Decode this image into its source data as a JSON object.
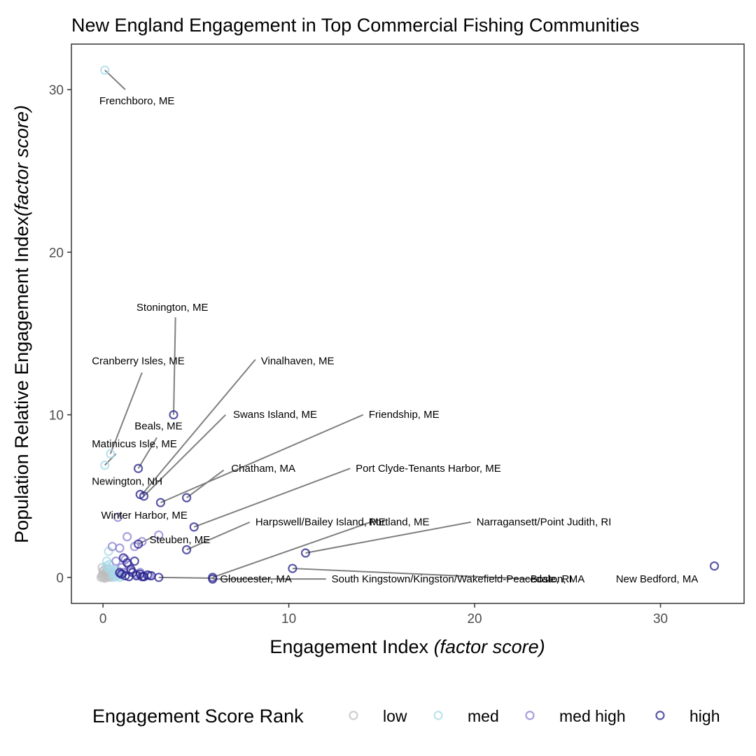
{
  "chart_data": {
    "type": "scatter",
    "title": "New England Engagement in Top Commercial Fishing Communities",
    "xlabel": {
      "main": "Engagement Index ",
      "italic": "(factor score)"
    },
    "ylabel": {
      "main": "Population Relative Engagement Index",
      "italic": "(factor score)"
    },
    "xlim": [
      -1.7,
      34.5
    ],
    "ylim": [
      -1.6,
      32.8
    ],
    "x_ticks": [
      0,
      10,
      20,
      30
    ],
    "y_ticks": [
      0,
      10,
      20,
      30
    ],
    "grid": false,
    "legend": {
      "title": "Engagement Score Rank",
      "position": "bottom"
    },
    "series": [
      {
        "name": "low",
        "color": "#bebebe",
        "points": [
          [
            -0.1,
            0
          ],
          [
            0,
            0.05
          ],
          [
            0.1,
            0
          ],
          [
            0.2,
            0.1
          ],
          [
            0,
            0.2
          ],
          [
            -0.05,
            0.1
          ],
          [
            0.15,
            0.3
          ],
          [
            0.05,
            0.45
          ],
          [
            -0.05,
            0.6
          ],
          [
            0.25,
            0.15
          ],
          [
            0.1,
            -0.05
          ],
          [
            0.3,
            0.05
          ],
          [
            0.2,
            0.5
          ],
          [
            0.4,
            0.2
          ],
          [
            0.35,
            0
          ],
          [
            0.5,
            0.1
          ],
          [
            0,
            0.35
          ],
          [
            0.15,
            0.15
          ]
        ]
      },
      {
        "name": "med",
        "color": "#a6d8ea",
        "points": [
          [
            0.1,
            31.2
          ],
          [
            0.4,
            7.6
          ],
          [
            0.1,
            6.9
          ],
          [
            0.3,
            1.6
          ],
          [
            0.2,
            1.0
          ],
          [
            0.35,
            0.8
          ],
          [
            0.45,
            0.5
          ],
          [
            0.5,
            0.3
          ],
          [
            0.6,
            0.2
          ],
          [
            0.7,
            0.05
          ],
          [
            0.8,
            0.15
          ],
          [
            0.55,
            0
          ],
          [
            0.3,
            0.55
          ],
          [
            0.65,
            0.35
          ],
          [
            0.9,
            0
          ],
          [
            1.0,
            0.1
          ],
          [
            0.2,
            0.7
          ],
          [
            0.75,
            0.45
          ]
        ]
      },
      {
        "name": "med high",
        "color": "#8a7fd0",
        "points": [
          [
            0.8,
            3.7
          ],
          [
            0.9,
            1.8
          ],
          [
            0.5,
            1.9
          ],
          [
            1.3,
            2.5
          ],
          [
            1.7,
            1.9
          ],
          [
            2.1,
            2.2
          ],
          [
            3.0,
            2.6
          ],
          [
            0.7,
            1.0
          ],
          [
            1.0,
            0.6
          ],
          [
            1.5,
            0.4
          ],
          [
            2.0,
            0.3
          ],
          [
            1.2,
            1.1
          ],
          [
            1.8,
            0.2
          ],
          [
            2.5,
            0.1
          ],
          [
            1.4,
            0.75
          ],
          [
            0.9,
            0.25
          ],
          [
            1.1,
            0.3
          ],
          [
            2.2,
            0.05
          ]
        ]
      },
      {
        "name": "high",
        "color": "#24208a",
        "points": [
          [
            3.8,
            10.0
          ],
          [
            1.9,
            6.7
          ],
          [
            2.0,
            5.1
          ],
          [
            2.2,
            5.0
          ],
          [
            3.1,
            4.6
          ],
          [
            4.5,
            4.9
          ],
          [
            4.9,
            3.1
          ],
          [
            4.5,
            1.7
          ],
          [
            10.9,
            1.5
          ],
          [
            10.2,
            0.55
          ],
          [
            32.9,
            0.7
          ],
          [
            5.9,
            0
          ],
          [
            3.0,
            0
          ],
          [
            5.9,
            -0.1
          ],
          [
            1.1,
            1.2
          ],
          [
            1.3,
            0.9
          ],
          [
            1.5,
            0.5
          ],
          [
            1.7,
            1.0
          ],
          [
            1.8,
            0.1
          ],
          [
            2.0,
            0.2
          ],
          [
            2.2,
            0.05
          ],
          [
            2.4,
            0.15
          ],
          [
            2.6,
            0.1
          ],
          [
            1.0,
            0.2
          ],
          [
            1.2,
            0.1
          ],
          [
            1.4,
            0.05
          ],
          [
            1.9,
            2.05
          ],
          [
            0.9,
            0.3
          ],
          [
            1.6,
            0.3
          ],
          [
            2.1,
            0.05
          ]
        ]
      }
    ],
    "annotations": [
      {
        "text": "Frenchboro, ME",
        "x": 0.1,
        "y": 31.2,
        "lx": 1.2,
        "ly": 30.0,
        "tx": -0.2,
        "ty": 29.1,
        "anchor": "start"
      },
      {
        "text": "Stonington, ME",
        "x": 3.8,
        "y": 10.0,
        "lx": 3.9,
        "ly": 16.0,
        "tx": 1.8,
        "ty": 16.4,
        "anchor": "start"
      },
      {
        "text": "Cranberry Isles, ME",
        "x": 0.4,
        "y": 7.6,
        "lx": 2.1,
        "ly": 12.6,
        "tx": -0.6,
        "ty": 13.1,
        "anchor": "start"
      },
      {
        "text": "Vinalhaven, ME",
        "x": 2.1,
        "y": 5.1,
        "lx": 8.2,
        "ly": 13.4,
        "tx": 8.5,
        "ty": 13.1,
        "anchor": "start"
      },
      {
        "text": "Swans Island, ME",
        "x": 2.2,
        "y": 5.0,
        "lx": 6.6,
        "ly": 10.0,
        "tx": 7.0,
        "ty": 9.8,
        "anchor": "start"
      },
      {
        "text": "Friendship, ME",
        "x": 3.1,
        "y": 4.6,
        "lx": 14.0,
        "ly": 10.0,
        "tx": 14.3,
        "ty": 9.8,
        "anchor": "start"
      },
      {
        "text": "Beals, ME",
        "x": 1.9,
        "y": 6.7,
        "lx": 2.9,
        "ly": 8.6,
        "tx": 1.7,
        "ty": 9.1,
        "anchor": "start"
      },
      {
        "text": "Matinicus Isle, ME",
        "x": 0.1,
        "y": 6.9,
        "lx": 0.7,
        "ly": 7.6,
        "tx": -0.6,
        "ty": 8.0,
        "anchor": "start"
      },
      {
        "text": "Newington, NH",
        "x": 0.1,
        "y": 6.9,
        "lx": 0.1,
        "ly": 6.9,
        "tx": -0.6,
        "ty": 5.7,
        "anchor": "start"
      },
      {
        "text": "Chatham, MA",
        "x": 4.5,
        "y": 4.9,
        "lx": 6.5,
        "ly": 6.6,
        "tx": 6.9,
        "ty": 6.5,
        "anchor": "start"
      },
      {
        "text": "Port Clyde-Tenants Harbor, ME",
        "x": 4.9,
        "y": 3.1,
        "lx": 13.3,
        "ly": 6.7,
        "tx": 13.6,
        "ty": 6.5,
        "anchor": "start"
      },
      {
        "text": "Winter Harbor, ME",
        "x": 0.8,
        "y": 3.7,
        "lx": 1.0,
        "ly": 4.0,
        "tx": -0.1,
        "ty": 3.6,
        "anchor": "start"
      },
      {
        "text": "Harpswell/Bailey Island, ME",
        "x": 4.5,
        "y": 1.7,
        "lx": 7.9,
        "ly": 3.4,
        "tx": 8.2,
        "ty": 3.2,
        "anchor": "start"
      },
      {
        "text": "Portland, ME",
        "x": 5.9,
        "y": 0,
        "lx": 14.4,
        "ly": 3.4,
        "tx": 14.3,
        "ty": 3.2,
        "anchor": "start"
      },
      {
        "text": "Narragansett/Point Judith, RI",
        "x": 10.9,
        "y": 1.5,
        "lx": 19.8,
        "ly": 3.4,
        "tx": 20.1,
        "ty": 3.2,
        "anchor": "start"
      },
      {
        "text": "Steuben, ME",
        "x": 1.9,
        "y": 2.05,
        "lx": 2.7,
        "ly": 2.5,
        "tx": 2.5,
        "ty": 2.1,
        "anchor": "start"
      },
      {
        "text": "Gloucester, MA",
        "x": 3.0,
        "y": 0,
        "lx": 6.0,
        "ly": -0.05,
        "tx": 6.3,
        "ty": -0.3,
        "anchor": "start"
      },
      {
        "text": "South Kingstown/Kingston/Wakefield-Peacedale, RI",
        "x": 5.9,
        "y": -0.1,
        "lx": 12.0,
        "ly": -0.1,
        "tx": 12.3,
        "ty": -0.3,
        "anchor": "start"
      },
      {
        "text": "Boston, MA",
        "x": 10.2,
        "y": 0.55,
        "lx": 23.0,
        "ly": -0.1,
        "tx": 23.0,
        "ty": -0.3,
        "anchor": "start"
      },
      {
        "text": "New Bedford, MA",
        "x": 32.9,
        "y": 0.7,
        "lx": 32.9,
        "ly": 0.7,
        "tx": 27.6,
        "ty": -0.3,
        "anchor": "start"
      }
    ]
  }
}
